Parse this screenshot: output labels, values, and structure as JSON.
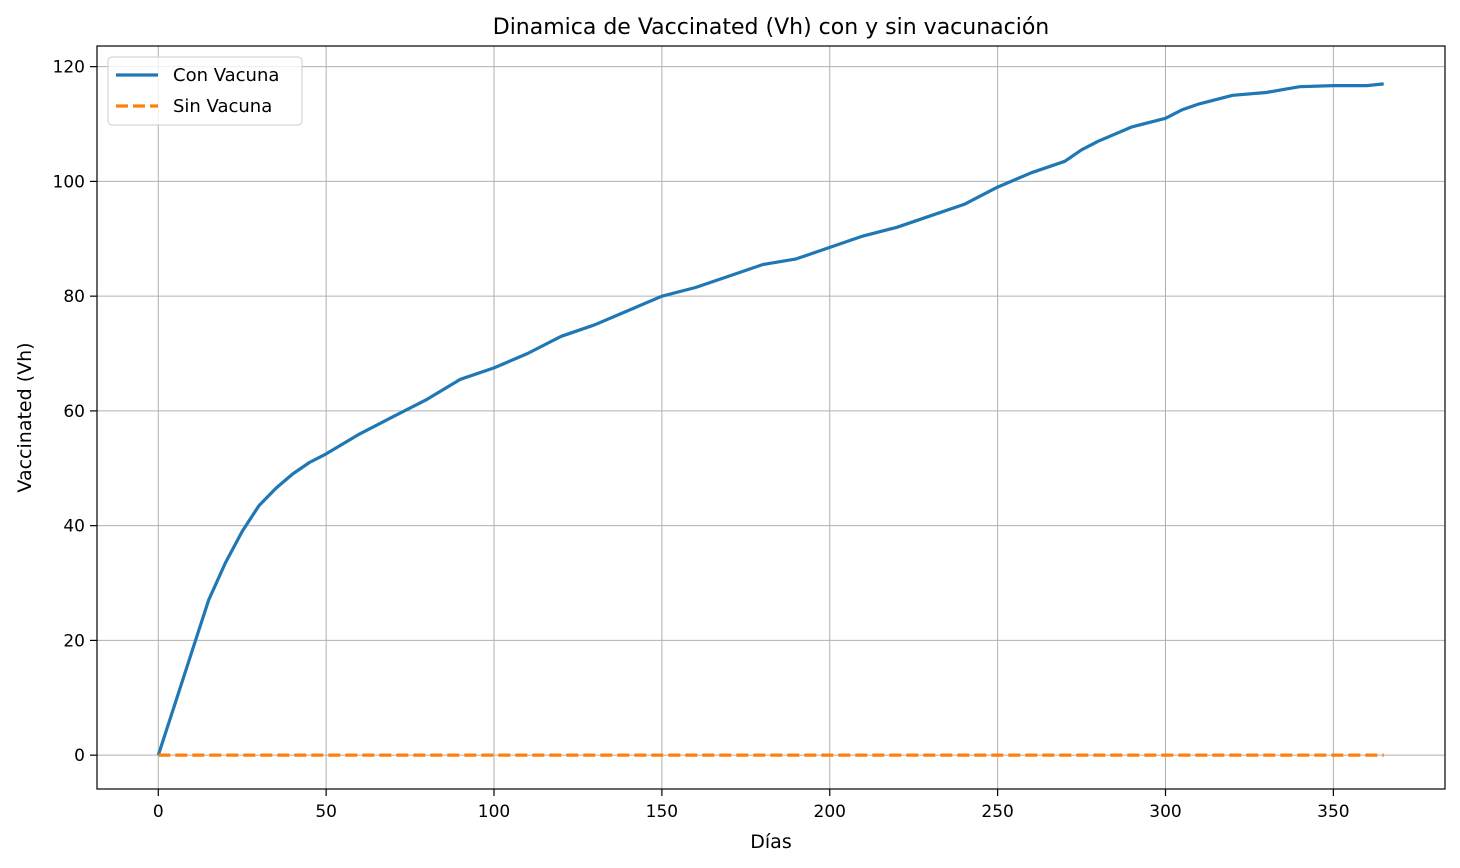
{
  "chart_data": {
    "type": "line",
    "title": "Dinamica de Vaccinated (Vh) con y sin vacunación",
    "xlabel": "Días",
    "ylabel": "Vaccinated (Vh)",
    "xlim": [
      -18.25,
      383.25
    ],
    "ylim": [
      -5.9,
      123.6
    ],
    "xticks": [
      0,
      50,
      100,
      150,
      200,
      250,
      300,
      350
    ],
    "yticks": [
      0,
      20,
      40,
      60,
      80,
      100,
      120
    ],
    "grid": true,
    "legend_position": "upper left",
    "series": [
      {
        "name": "Con Vacuna",
        "color": "#1f77b4",
        "style": "solid",
        "x": [
          0,
          5,
          10,
          15,
          20,
          25,
          30,
          35,
          40,
          45,
          50,
          60,
          70,
          80,
          90,
          100,
          110,
          120,
          130,
          140,
          150,
          160,
          170,
          180,
          190,
          200,
          210,
          220,
          230,
          240,
          250,
          260,
          270,
          275,
          280,
          290,
          300,
          305,
          310,
          320,
          330,
          335,
          340,
          350,
          360,
          365
        ],
        "y": [
          0,
          9,
          18,
          27,
          33.5,
          39,
          43.5,
          46.5,
          49,
          51,
          52.5,
          56,
          59,
          62,
          65.5,
          67.5,
          70,
          73,
          75,
          77.5,
          80,
          81.5,
          83.5,
          85.5,
          86.5,
          88.5,
          90.5,
          92,
          94,
          96,
          99,
          101.5,
          103.5,
          105.5,
          107,
          109.5,
          111,
          112.5,
          113.5,
          115,
          115.5,
          116,
          116.5,
          116.7,
          116.7,
          117
        ]
      },
      {
        "name": "Sin Vacuna",
        "color": "#ff7f0e",
        "style": "dashed",
        "x": [
          0,
          365
        ],
        "y": [
          0,
          0
        ]
      }
    ]
  }
}
